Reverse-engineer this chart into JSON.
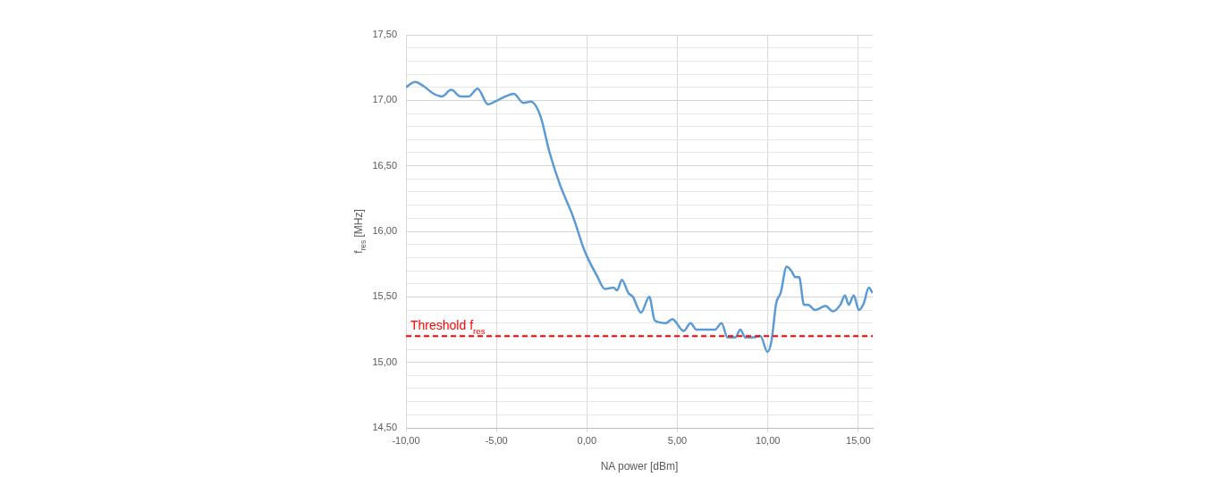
{
  "chart_data": {
    "type": "line",
    "xlabel": "NA power [dBm]",
    "ylabel": "f$_{res}$ [MHz]",
    "series": [
      {
        "color": "#5b9bd5",
        "x": [
          -10,
          -9.5,
          -9.04,
          -8.47,
          -8.02,
          -7.5,
          -6.98,
          -6.53,
          -6.04,
          -5.47,
          -4.95,
          -4.5,
          -4.04,
          -3.51,
          -3.1,
          -2.57,
          -2.08,
          -1.5,
          -0.76,
          -0.18,
          0,
          0.56,
          1.0,
          1.47,
          1.67,
          1.93,
          2.29,
          2.54,
          2.99,
          3.45,
          3.75,
          4.36,
          4.72,
          5.35,
          5.73,
          6.05,
          7.08,
          7.44,
          7.77,
          8.2,
          8.48,
          8.76,
          9.22,
          9.59,
          9.98,
          10.21,
          10.46,
          10.71,
          11.04,
          11.29,
          11.53,
          11.73,
          12.0,
          12.23,
          12.61,
          13.19,
          13.6,
          14.01,
          14.26,
          14.47,
          14.75,
          15.03,
          15.3,
          15.58,
          15.79
        ],
        "values": [
          17.1,
          17.14,
          17.11,
          17.05,
          17.03,
          17.08,
          17.03,
          17.03,
          17.09,
          16.97,
          17.0,
          17.03,
          17.05,
          16.98,
          16.99,
          16.88,
          16.61,
          16.36,
          16.11,
          15.87,
          15.81,
          15.66,
          15.56,
          15.57,
          15.55,
          15.63,
          15.53,
          15.5,
          15.38,
          15.5,
          15.32,
          15.3,
          15.33,
          15.24,
          15.3,
          15.25,
          15.25,
          15.3,
          15.19,
          15.19,
          15.25,
          15.19,
          15.19,
          15.2,
          15.08,
          15.17,
          15.45,
          15.53,
          15.73,
          15.7,
          15.65,
          15.65,
          15.44,
          15.44,
          15.4,
          15.43,
          15.39,
          15.44,
          15.51,
          15.44,
          15.51,
          15.4,
          15.45,
          15.57,
          15.53
        ]
      }
    ],
    "xlim": [
      -10,
      15.8
    ],
    "xticks": [
      {
        "value": -10,
        "label": "-10,00"
      },
      {
        "value": -5,
        "label": "-5,00"
      },
      {
        "value": 0,
        "label": "0,00"
      },
      {
        "value": 5,
        "label": "5,00"
      },
      {
        "value": 10,
        "label": "10,00"
      },
      {
        "value": 15,
        "label": "15,00"
      }
    ],
    "ylim": [
      14.5,
      17.5
    ],
    "yticks": [
      {
        "value": 14.5,
        "label": "14,50"
      },
      {
        "value": 14.6,
        "label": null
      },
      {
        "value": 14.7,
        "label": null
      },
      {
        "value": 14.8,
        "label": null
      },
      {
        "value": 14.9,
        "label": null
      },
      {
        "value": 15,
        "label": "15,00"
      },
      {
        "value": 15.1,
        "label": null
      },
      {
        "value": 15.2,
        "label": null
      },
      {
        "value": 15.3,
        "label": null
      },
      {
        "value": 15.4,
        "label": null
      },
      {
        "value": 15.5,
        "label": "15,50"
      },
      {
        "value": 15.6,
        "label": null
      },
      {
        "value": 15.7,
        "label": null
      },
      {
        "value": 15.8,
        "label": null
      },
      {
        "value": 15.9,
        "label": null
      },
      {
        "value": 16,
        "label": "16,00"
      },
      {
        "value": 16.1,
        "label": null
      },
      {
        "value": 16.2,
        "label": null
      },
      {
        "value": 16.3,
        "label": null
      },
      {
        "value": 16.4,
        "label": null
      },
      {
        "value": 16.5,
        "label": "16,50"
      },
      {
        "value": 16.6,
        "label": null
      },
      {
        "value": 16.7,
        "label": null
      },
      {
        "value": 16.8,
        "label": null
      },
      {
        "value": 16.9,
        "label": null
      },
      {
        "value": 17,
        "label": "17,00"
      },
      {
        "value": 17.1,
        "label": null
      },
      {
        "value": 17.2,
        "label": null
      },
      {
        "value": 17.3,
        "label": null
      },
      {
        "value": 17.4,
        "label": null
      },
      {
        "value": 17.5,
        "label": "17,50"
      }
    ],
    "ref_lines": [
      {
        "axis": "y",
        "value": 15.2,
        "label": "Threshold f$_{res}$",
        "color": "#ff0000",
        "line_style": "dashed"
      }
    ],
    "grid": true,
    "legend": false,
    "marker": "none",
    "line_style": "solid"
  }
}
